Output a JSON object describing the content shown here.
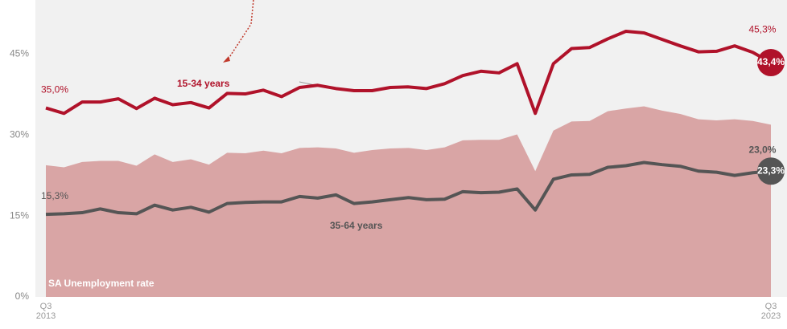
{
  "chart_data": {
    "type": "line",
    "categories": [
      "Q3 2013",
      null,
      null,
      null,
      null,
      null,
      null,
      null,
      null,
      null,
      null,
      null,
      null,
      null,
      null,
      null,
      null,
      null,
      null,
      null,
      null,
      null,
      null,
      null,
      null,
      null,
      null,
      null,
      null,
      null,
      null,
      null,
      null,
      null,
      null,
      null,
      null,
      null,
      null,
      null,
      "Q3 2023"
    ],
    "ylim": [
      0,
      55
    ],
    "yticks": [
      {
        "value": 0,
        "label": "0%"
      },
      {
        "value": 15,
        "label": "15%"
      },
      {
        "value": 30,
        "label": "30%"
      },
      {
        "value": 45,
        "label": "45%"
      }
    ],
    "series": [
      {
        "name": "SA Unemployment rate",
        "kind": "area",
        "color": "#d9a5a5",
        "values": [
          24.4,
          24.0,
          25.0,
          25.2,
          25.2,
          24.3,
          26.4,
          25.0,
          25.5,
          24.5,
          26.7,
          26.6,
          27.1,
          26.6,
          27.6,
          27.7,
          27.5,
          26.7,
          27.2,
          27.5,
          27.6,
          27.2,
          27.7,
          29.0,
          29.1,
          29.1,
          30.1,
          23.3,
          30.8,
          32.5,
          32.6,
          34.4,
          34.9,
          35.3,
          34.5,
          33.9,
          32.9,
          32.7,
          32.9,
          32.6,
          31.9
        ]
      },
      {
        "name": "15-34 years",
        "kind": "line",
        "color": "#b0122a",
        "values": [
          35.0,
          34.0,
          36.1,
          36.1,
          36.7,
          34.9,
          36.8,
          35.6,
          36.0,
          35.0,
          37.7,
          37.6,
          38.3,
          37.1,
          38.8,
          39.2,
          38.6,
          38.2,
          38.2,
          38.8,
          38.9,
          38.6,
          39.5,
          41.0,
          41.8,
          41.5,
          43.2,
          34.0,
          43.2,
          46.0,
          46.2,
          47.8,
          49.2,
          48.9,
          47.7,
          46.5,
          45.4,
          45.5,
          46.5,
          45.3,
          43.4
        ],
        "value_labels": [
          "35,0%",
          null,
          null,
          null,
          null,
          null,
          null,
          null,
          null,
          null,
          null,
          null,
          null,
          null,
          null,
          null,
          null,
          null,
          null,
          null,
          null,
          null,
          null,
          null,
          null,
          null,
          null,
          null,
          null,
          null,
          null,
          null,
          null,
          null,
          null,
          null,
          null,
          null,
          null,
          "45,3%",
          "43,4%"
        ]
      },
      {
        "name": "35-64 years",
        "kind": "line",
        "color": "#555555",
        "values": [
          15.3,
          15.4,
          15.6,
          16.3,
          15.6,
          15.4,
          17.0,
          16.1,
          16.6,
          15.7,
          17.3,
          17.5,
          17.6,
          17.6,
          18.6,
          18.3,
          18.9,
          17.3,
          17.6,
          18.0,
          18.4,
          18.0,
          18.1,
          19.5,
          19.3,
          19.4,
          20.0,
          16.1,
          21.8,
          22.6,
          22.7,
          24.0,
          24.3,
          24.9,
          24.5,
          24.2,
          23.3,
          23.1,
          22.5,
          23.0,
          23.3
        ],
        "value_labels": [
          "15,3%",
          null,
          null,
          null,
          null,
          null,
          null,
          null,
          null,
          null,
          null,
          null,
          null,
          null,
          null,
          null,
          null,
          null,
          null,
          null,
          null,
          null,
          null,
          null,
          null,
          null,
          null,
          null,
          null,
          null,
          null,
          null,
          null,
          null,
          null,
          null,
          null,
          null,
          null,
          "23,0%",
          "23,3%"
        ]
      }
    ]
  }
}
